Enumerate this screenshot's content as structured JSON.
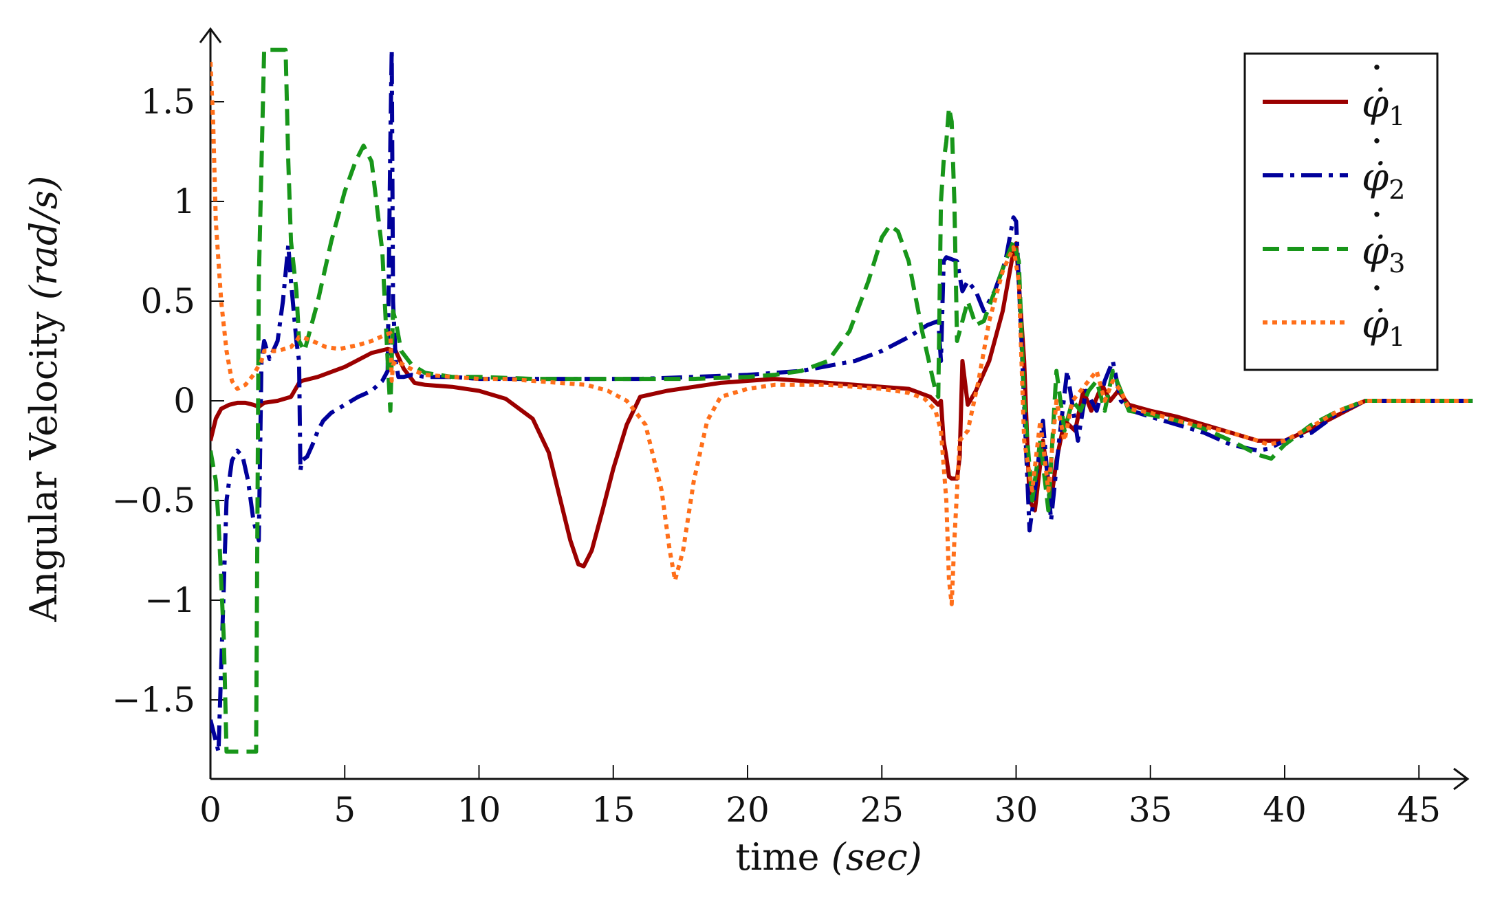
{
  "chart_data": {
    "type": "line",
    "title": "",
    "xlabel": "time",
    "xlabel_unit": "(sec)",
    "ylabel": "Angular Velocity",
    "ylabel_unit": "(rad/s)",
    "xlim": [
      0,
      47
    ],
    "ylim": [
      -1.9,
      1.9
    ],
    "xticks": [
      0,
      5,
      10,
      15,
      20,
      25,
      30,
      35,
      40,
      45
    ],
    "xtick_labels": [
      "0",
      "5",
      "10",
      "15",
      "20",
      "25",
      "30",
      "35",
      "40",
      "45"
    ],
    "yticks": [
      -1.5,
      -1,
      -0.5,
      0,
      0.5,
      1,
      1.5
    ],
    "ytick_labels": [
      "−1.5",
      "−1",
      "−0.5",
      "0",
      "0.5",
      "1",
      "1.5"
    ],
    "grid": false,
    "legend_position": "top-right",
    "colors": {
      "s1": "#9b0000",
      "s2": "#00009b",
      "s3": "#18961a",
      "s4": "#ff6f1a"
    },
    "series": [
      {
        "name": "φ̇",
        "name_sub": "1",
        "style": "solid",
        "color": "#9b0000",
        "x": [
          0,
          0.2,
          0.4,
          0.7,
          1.0,
          1.3,
          1.6,
          1.8,
          2.0,
          2.5,
          3.0,
          3.3,
          3.4,
          4.0,
          5.0,
          6.0,
          6.6,
          6.9,
          7.2,
          7.6,
          8.0,
          9.0,
          10.0,
          11.0,
          12.0,
          12.6,
          13.0,
          13.4,
          13.7,
          13.9,
          14.2,
          14.6,
          15.0,
          15.5,
          16.0,
          17.0,
          18.0,
          19.0,
          20.0,
          21.0,
          22.0,
          23.0,
          24.0,
          25.0,
          26.0,
          26.8,
          27.1,
          27.2,
          27.3,
          27.4,
          27.5,
          27.6,
          27.8,
          27.9,
          28.0,
          28.2,
          28.5,
          29.0,
          29.5,
          29.9,
          30.0,
          30.3,
          30.5,
          30.7,
          31.0,
          31.3,
          31.5,
          31.8,
          32.2,
          32.5,
          32.8,
          33.2,
          33.5,
          33.8,
          34.2,
          35.0,
          36.0,
          37.0,
          38.0,
          39.0,
          40.0,
          41.0,
          42.0,
          43.0,
          47.0
        ],
        "y": [
          -0.2,
          -0.09,
          -0.04,
          -0.02,
          -0.01,
          -0.01,
          -0.02,
          -0.03,
          -0.01,
          0.0,
          0.02,
          0.09,
          0.1,
          0.12,
          0.17,
          0.24,
          0.26,
          0.25,
          0.16,
          0.09,
          0.08,
          0.07,
          0.05,
          0.01,
          -0.09,
          -0.26,
          -0.48,
          -0.7,
          -0.82,
          -0.83,
          -0.75,
          -0.55,
          -0.34,
          -0.12,
          0.02,
          0.05,
          0.07,
          0.09,
          0.1,
          0.11,
          0.1,
          0.09,
          0.08,
          0.07,
          0.06,
          0.02,
          -0.02,
          0.0,
          -0.2,
          -0.28,
          -0.38,
          -0.39,
          -0.39,
          -0.28,
          0.2,
          -0.02,
          0.05,
          0.2,
          0.45,
          0.75,
          0.79,
          0.2,
          -0.5,
          -0.55,
          -0.2,
          -0.5,
          -0.3,
          -0.1,
          -0.15,
          0.05,
          -0.05,
          0.08,
          0.0,
          0.05,
          -0.02,
          -0.05,
          -0.08,
          -0.12,
          -0.16,
          -0.2,
          -0.2,
          -0.14,
          -0.07,
          0.0,
          0.0
        ]
      },
      {
        "name": "φ̇",
        "name_sub": "2",
        "style": "dashdot",
        "color": "#00009b",
        "x": [
          0,
          0.3,
          0.6,
          0.8,
          1.0,
          1.2,
          1.4,
          1.6,
          1.8,
          1.9,
          2.0,
          2.2,
          2.5,
          2.7,
          2.9,
          3.0,
          3.2,
          3.3,
          3.35,
          3.4,
          3.6,
          3.8,
          4.0,
          4.2,
          4.5,
          5.0,
          5.5,
          6.0,
          6.4,
          6.6,
          6.7,
          6.75,
          6.8,
          6.9,
          7.0,
          7.2,
          7.5,
          8.0,
          9.0,
          10.0,
          12.0,
          14.0,
          16.0,
          18.0,
          20.0,
          22.0,
          24.0,
          25.0,
          26.0,
          26.7,
          27.1,
          27.2,
          27.3,
          27.4,
          27.8,
          28.0,
          28.2,
          28.5,
          28.8,
          29.2,
          29.6,
          29.9,
          30.0,
          30.2,
          30.5,
          30.7,
          31.0,
          31.3,
          31.6,
          31.9,
          32.3,
          32.6,
          33.0,
          33.3,
          33.6,
          33.9,
          34.3,
          35.0,
          36.0,
          37.0,
          38.0,
          39.0,
          39.4,
          40.0,
          41.0,
          42.0,
          43.0,
          47.0
        ],
        "y": [
          -1.6,
          -1.76,
          -0.5,
          -0.3,
          -0.25,
          -0.28,
          -0.4,
          -0.6,
          -0.7,
          0.2,
          0.3,
          0.21,
          0.3,
          0.5,
          0.78,
          0.6,
          0.3,
          0.2,
          -0.35,
          -0.3,
          -0.28,
          -0.22,
          -0.15,
          -0.1,
          -0.06,
          -0.02,
          0.02,
          0.05,
          0.1,
          0.15,
          1.3,
          1.76,
          0.5,
          0.2,
          0.12,
          0.12,
          0.13,
          0.12,
          0.12,
          0.11,
          0.11,
          0.11,
          0.11,
          0.12,
          0.13,
          0.15,
          0.2,
          0.25,
          0.32,
          0.38,
          0.4,
          0.2,
          0.7,
          0.72,
          0.7,
          0.55,
          0.6,
          0.55,
          0.45,
          0.55,
          0.7,
          0.92,
          0.9,
          0.3,
          -0.65,
          -0.45,
          -0.1,
          -0.6,
          -0.2,
          0.15,
          -0.2,
          0.05,
          -0.05,
          0.1,
          0.2,
          0.0,
          -0.05,
          -0.08,
          -0.12,
          -0.16,
          -0.22,
          -0.25,
          -0.24,
          -0.2,
          -0.16,
          -0.06,
          0.0,
          0.0
        ]
      },
      {
        "name": "φ̇",
        "name_sub": "3",
        "style": "dashed",
        "color": "#18961a",
        "x": [
          0,
          0.2,
          0.3,
          0.5,
          0.6,
          1.7,
          1.8,
          2.0,
          2.8,
          2.9,
          3.0,
          3.2,
          3.3,
          3.5,
          4.0,
          4.5,
          5.0,
          5.4,
          5.7,
          6.0,
          6.4,
          6.6,
          6.7,
          6.8,
          6.9,
          7.1,
          7.5,
          8.0,
          9.0,
          10.0,
          12.0,
          14.0,
          16.0,
          18.0,
          20.0,
          21.0,
          22.0,
          23.0,
          23.8,
          24.5,
          25.0,
          25.3,
          25.6,
          26.0,
          26.5,
          27.0,
          27.1,
          27.2,
          27.3,
          27.4,
          27.5,
          27.6,
          27.7,
          27.8,
          28.0,
          28.2,
          28.5,
          28.8,
          29.2,
          29.6,
          29.9,
          30.1,
          30.3,
          30.6,
          30.9,
          31.2,
          31.5,
          31.8,
          32.1,
          32.4,
          32.7,
          33.0,
          33.3,
          33.6,
          33.9,
          34.2,
          35.0,
          36.0,
          37.0,
          38.0,
          39.0,
          39.5,
          40.0,
          41.0,
          42.0,
          43.0,
          47.0
        ],
        "y": [
          -0.25,
          -0.4,
          -0.6,
          -1.2,
          -1.76,
          -1.76,
          0.6,
          1.76,
          1.76,
          1.2,
          0.8,
          0.55,
          0.3,
          0.25,
          0.5,
          0.8,
          1.05,
          1.2,
          1.28,
          1.2,
          0.75,
          0.2,
          -0.05,
          0.45,
          0.4,
          0.25,
          0.18,
          0.14,
          0.12,
          0.12,
          0.11,
          0.11,
          0.11,
          0.11,
          0.12,
          0.13,
          0.15,
          0.2,
          0.35,
          0.6,
          0.82,
          0.88,
          0.85,
          0.7,
          0.35,
          0.05,
          0.02,
          1.0,
          1.2,
          1.3,
          1.47,
          1.4,
          1.0,
          0.3,
          0.4,
          0.5,
          0.38,
          0.4,
          0.55,
          0.7,
          0.8,
          0.7,
          0.0,
          -0.5,
          -0.2,
          -0.55,
          0.15,
          -0.15,
          0.0,
          -0.05,
          0.05,
          0.1,
          -0.05,
          0.15,
          0.05,
          -0.05,
          -0.07,
          -0.1,
          -0.14,
          -0.2,
          -0.27,
          -0.29,
          -0.22,
          -0.12,
          -0.05,
          0.0,
          0.0
        ]
      },
      {
        "name": "φ̇",
        "name_sub": "1",
        "style": "dotted",
        "color": "#ff6f1a",
        "x": [
          0,
          0.1,
          0.2,
          0.4,
          0.6,
          0.8,
          1.0,
          1.3,
          1.6,
          1.9,
          2.0,
          2.5,
          3.0,
          3.2,
          3.3,
          3.4,
          3.8,
          4.3,
          4.8,
          5.5,
          6.0,
          6.5,
          6.7,
          6.75,
          6.8,
          6.9,
          7.2,
          7.6,
          8.0,
          9.0,
          10.0,
          11.0,
          12.0,
          13.0,
          14.0,
          14.8,
          15.5,
          16.2,
          16.8,
          17.1,
          17.3,
          17.6,
          18.0,
          18.5,
          19.0,
          20.0,
          21.0,
          22.0,
          23.0,
          24.0,
          25.0,
          26.0,
          26.6,
          27.0,
          27.2,
          27.4,
          27.5,
          27.6,
          27.7,
          27.9,
          28.2,
          28.6,
          29.0,
          29.5,
          29.9,
          30.1,
          30.3,
          30.6,
          30.9,
          31.2,
          31.5,
          31.8,
          32.1,
          32.4,
          32.7,
          33.0,
          33.3,
          33.6,
          33.9,
          34.2,
          35.0,
          36.0,
          37.0,
          38.0,
          39.0,
          39.4,
          40.0,
          41.0,
          42.0,
          43.0,
          47.0
        ],
        "y": [
          1.7,
          1.4,
          0.9,
          0.5,
          0.25,
          0.1,
          0.06,
          0.08,
          0.13,
          0.2,
          0.25,
          0.25,
          0.27,
          0.3,
          0.32,
          0.32,
          0.3,
          0.27,
          0.26,
          0.28,
          0.3,
          0.33,
          0.34,
          0.1,
          0.18,
          0.2,
          0.18,
          0.15,
          0.13,
          0.12,
          0.11,
          0.11,
          0.1,
          0.09,
          0.08,
          0.05,
          0.0,
          -0.12,
          -0.45,
          -0.75,
          -0.9,
          -0.75,
          -0.4,
          -0.1,
          0.02,
          0.06,
          0.08,
          0.08,
          0.08,
          0.07,
          0.06,
          0.04,
          0.01,
          -0.05,
          -0.15,
          -0.5,
          -0.9,
          -1.02,
          -0.7,
          -0.2,
          -0.15,
          0.1,
          0.4,
          0.65,
          0.77,
          0.6,
          -0.2,
          -0.45,
          -0.1,
          -0.45,
          0.0,
          -0.2,
          0.0,
          0.05,
          0.1,
          0.15,
          0.0,
          0.1,
          0.05,
          -0.04,
          -0.06,
          -0.1,
          -0.13,
          -0.16,
          -0.2,
          -0.22,
          -0.2,
          -0.13,
          -0.05,
          0.0,
          0.0
        ]
      }
    ]
  }
}
